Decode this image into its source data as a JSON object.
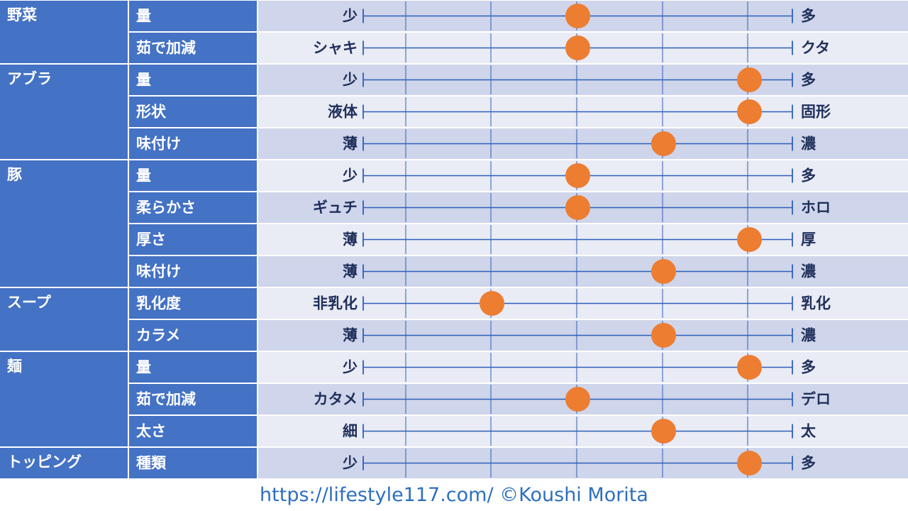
{
  "chart_data": {
    "type": "table",
    "scale": {
      "min": 1,
      "max": 6,
      "ticks": 6
    },
    "groups": [
      {
        "name": "野菜",
        "rows": [
          {
            "label": "量",
            "left": "少",
            "right": "多",
            "value": 3.5
          },
          {
            "label": "茹で加減",
            "left": "シャキ",
            "right": "クタ",
            "value": 3.5
          }
        ]
      },
      {
        "name": "アブラ",
        "rows": [
          {
            "label": "量",
            "left": "少",
            "right": "多",
            "value": 5.5
          },
          {
            "label": "形状",
            "left": "液体",
            "right": "固形",
            "value": 5.5
          },
          {
            "label": "味付け",
            "left": "薄",
            "right": "濃",
            "value": 4.5
          }
        ]
      },
      {
        "name": "豚",
        "rows": [
          {
            "label": "量",
            "left": "少",
            "right": "多",
            "value": 3.5
          },
          {
            "label": "柔らかさ",
            "left": "ギュチ",
            "right": "ホロ",
            "value": 3.5
          },
          {
            "label": "厚さ",
            "left": "薄",
            "right": "厚",
            "value": 5.5
          },
          {
            "label": "味付け",
            "left": "薄",
            "right": "濃",
            "value": 4.5
          }
        ]
      },
      {
        "name": "スープ",
        "rows": [
          {
            "label": "乳化度",
            "left": "非乳化",
            "right": "乳化",
            "value": 2.5
          },
          {
            "label": "カラメ",
            "left": "薄",
            "right": "濃",
            "value": 4.5
          }
        ]
      },
      {
        "name": "麺",
        "rows": [
          {
            "label": "量",
            "left": "少",
            "right": "多",
            "value": 5.5
          },
          {
            "label": "茹で加減",
            "left": "カタメ",
            "right": "デロ",
            "value": 3.5
          },
          {
            "label": "太さ",
            "left": "細",
            "right": "太",
            "value": 4.5
          }
        ]
      },
      {
        "name": "トッピング",
        "rows": [
          {
            "label": "種類",
            "left": "少",
            "right": "多",
            "value": 5.5
          }
        ]
      }
    ]
  },
  "footer": "https://lifestyle117.com/  ©Koushi Morita",
  "colors": {
    "header_blue": "#4472c4",
    "row_dark": "#cfd5ea",
    "row_light": "#e9ebf5",
    "line_blue": "#2e5fb8",
    "marker_orange": "#ed7d31",
    "label_text": "#1f2f5a",
    "footer_text": "#2e6fbf"
  }
}
